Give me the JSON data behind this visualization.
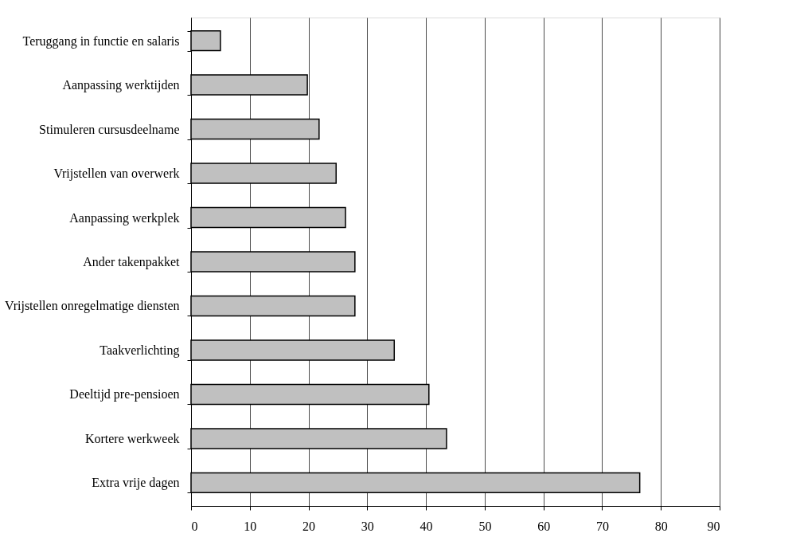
{
  "chart_data": {
    "type": "bar",
    "orientation": "horizontal",
    "categories": [
      "Teruggang in functie en salaris",
      "Aanpassing werktijden",
      "Stimuleren cursusdeelname",
      "Vrijstellen van overwerk",
      "Aanpassing werkplek",
      "Ander takenpakket",
      "Vrijstellen onregelmatige diensten",
      "Taakverlichting",
      "Deeltijd pre-pensioen",
      "Kortere werkweek",
      "Extra vrije dagen"
    ],
    "values": [
      5.0,
      19.8,
      21.8,
      24.7,
      26.3,
      27.9,
      27.9,
      34.6,
      40.5,
      43.5,
      76.4
    ],
    "color": "#c0c0c0",
    "xlim": [
      0,
      90
    ],
    "xticks": [
      0,
      10,
      20,
      30,
      40,
      50,
      60,
      70,
      80,
      90
    ],
    "grid": "x"
  }
}
